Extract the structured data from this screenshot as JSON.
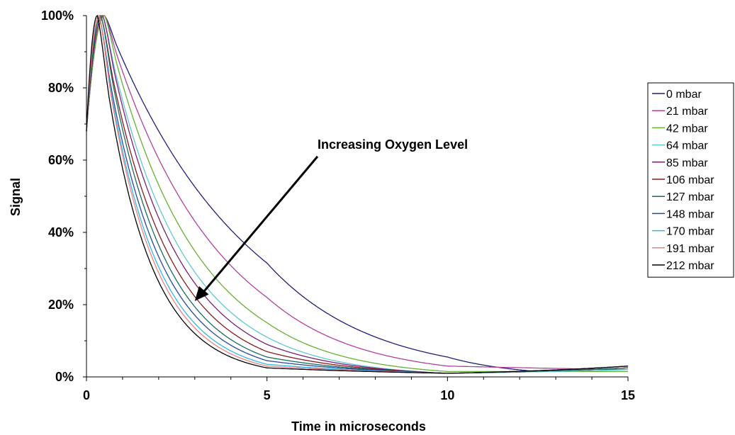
{
  "chart_data": {
    "type": "line",
    "title": "",
    "xlabel": "Time in microseconds",
    "ylabel": "Signal",
    "xlim": [
      0,
      15
    ],
    "ylim": [
      0,
      100
    ],
    "x_ticks": [
      "0",
      "5",
      "10",
      "15"
    ],
    "y_ticks": [
      "0%",
      "20%",
      "40%",
      "60%",
      "80%",
      "100%"
    ],
    "grid": false,
    "legend_position": "right",
    "annotation": {
      "text": "Increasing Oxygen Level",
      "arrow_from": [
        6.4,
        61
      ],
      "arrow_to": [
        3.0,
        21
      ]
    },
    "series": [
      {
        "name": "0 mbar",
        "color": "#1f1f7a",
        "peak_x": 0.5,
        "tail": [
          [
            5,
            31.5
          ],
          [
            10,
            5.5
          ],
          [
            12.5,
            1.5
          ],
          [
            15,
            2.5
          ]
        ]
      },
      {
        "name": "21 mbar",
        "color": "#b040a0",
        "peak_x": 0.5,
        "tail": [
          [
            5,
            22
          ],
          [
            10,
            3
          ],
          [
            15,
            2
          ]
        ]
      },
      {
        "name": "42 mbar",
        "color": "#66b032",
        "peak_x": 0.5,
        "tail": [
          [
            5,
            15
          ],
          [
            10,
            1.5
          ],
          [
            15,
            1.5
          ]
        ]
      },
      {
        "name": "64 mbar",
        "color": "#5fc8d0",
        "peak_x": 0.45,
        "tail": [
          [
            5,
            11
          ],
          [
            10,
            1
          ],
          [
            15,
            2
          ]
        ]
      },
      {
        "name": "85 mbar",
        "color": "#7a1f7a",
        "peak_x": 0.45,
        "tail": [
          [
            5,
            9
          ],
          [
            10,
            1
          ],
          [
            15,
            2.5
          ]
        ]
      },
      {
        "name": "106 mbar",
        "color": "#8b1a1a",
        "peak_x": 0.4,
        "tail": [
          [
            5,
            7
          ],
          [
            10,
            1
          ],
          [
            15,
            2.5
          ]
        ]
      },
      {
        "name": "127 mbar",
        "color": "#1a6b60",
        "peak_x": 0.4,
        "tail": [
          [
            5,
            5.5
          ],
          [
            10,
            1
          ],
          [
            15,
            2.5
          ]
        ]
      },
      {
        "name": "148 mbar",
        "color": "#2848a0",
        "peak_x": 0.35,
        "tail": [
          [
            5,
            4.5
          ],
          [
            10,
            1
          ],
          [
            15,
            3
          ]
        ]
      },
      {
        "name": "170 mbar",
        "color": "#30b8e8",
        "peak_x": 0.35,
        "tail": [
          [
            5,
            3.5
          ],
          [
            10,
            1
          ],
          [
            15,
            3
          ]
        ]
      },
      {
        "name": "191 mbar",
        "color": "#f08080",
        "peak_x": 0.35,
        "tail": [
          [
            5,
            3
          ],
          [
            10,
            1
          ],
          [
            15,
            3
          ]
        ]
      },
      {
        "name": "212 mbar",
        "color": "#000000",
        "peak_x": 0.3,
        "tail": [
          [
            5,
            2.5
          ],
          [
            10,
            1
          ],
          [
            15,
            3
          ]
        ]
      }
    ]
  }
}
